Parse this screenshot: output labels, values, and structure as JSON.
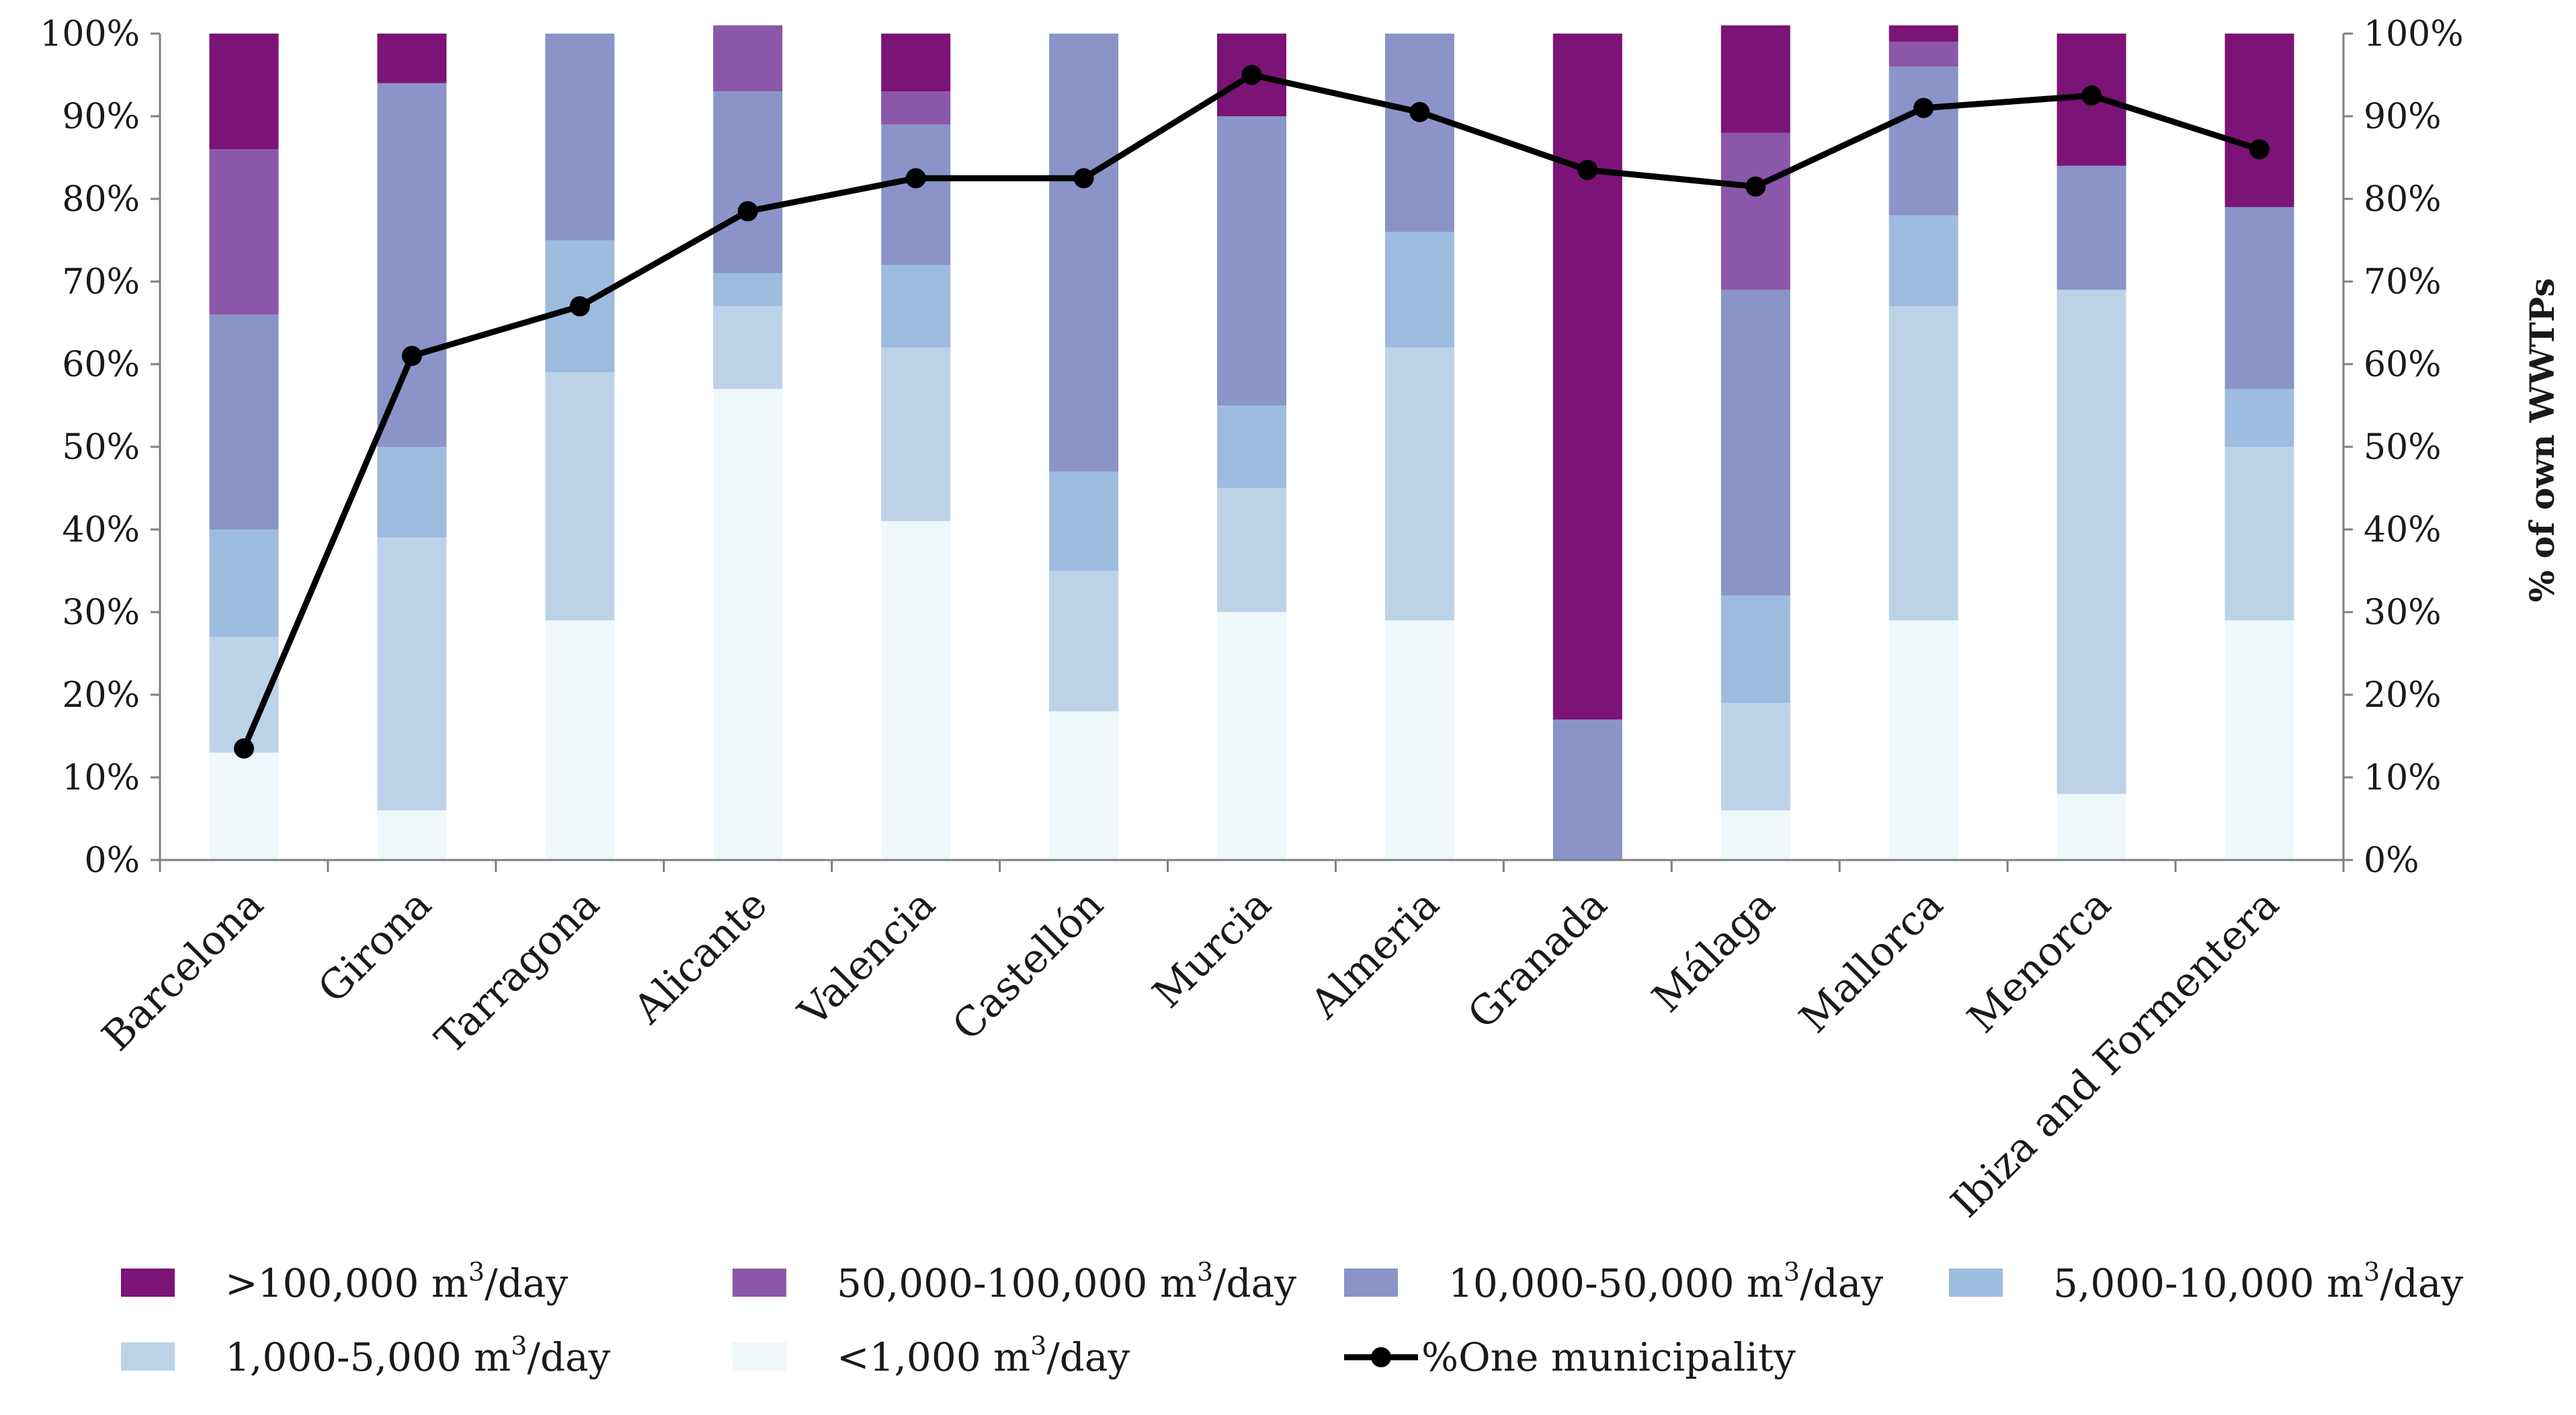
{
  "chart_data": {
    "type": "bar",
    "stacked": true,
    "categories": [
      "Barcelona",
      "Girona",
      "Tarragona",
      "Alicante",
      "Valencia",
      "Castellón",
      "Murcia",
      "Almeria",
      "Granada",
      "Málaga",
      "Mallorca",
      "Menorca",
      "Ibiza and Formentera"
    ],
    "series": [
      {
        "name": "<1,000",
        "unit": "m3/day",
        "color": "#eef8fb",
        "values": [
          13,
          6,
          29,
          57,
          41,
          18,
          30,
          29,
          0,
          6,
          29,
          8,
          29
        ]
      },
      {
        "name": "1,000-5,000",
        "unit": "m3/day",
        "color": "#bcd3e7",
        "values": [
          14,
          33,
          30,
          10,
          21,
          17,
          15,
          33,
          0,
          13,
          38,
          61,
          21
        ]
      },
      {
        "name": "5,000-10,000",
        "unit": "m3/day",
        "color": "#9ebce0",
        "values": [
          13,
          11,
          16,
          4,
          10,
          12,
          10,
          14,
          0,
          13,
          11,
          0,
          7
        ]
      },
      {
        "name": "10,000-50,000",
        "unit": "m3/day",
        "color": "#8a94c8",
        "values": [
          26,
          44,
          25,
          22,
          17,
          53,
          35,
          24,
          17,
          37,
          18,
          15,
          22
        ]
      },
      {
        "name": "50,000-100,000",
        "unit": "m3/day",
        "color": "#8b57a8",
        "values": [
          20,
          0,
          0,
          8,
          4,
          0,
          0,
          0,
          0,
          19,
          3,
          0,
          0
        ]
      },
      {
        "name": ">100,000",
        "unit": "m3/day",
        "color": "#7b1476",
        "values": [
          14,
          6,
          0,
          0,
          7,
          0,
          10,
          0,
          83,
          13,
          2,
          16,
          21
        ]
      }
    ],
    "line": {
      "name": "%One municipality",
      "color": "#000000",
      "values": [
        13.5,
        61,
        67,
        78.5,
        82.5,
        82.5,
        95,
        90.5,
        83.5,
        81.5,
        91,
        92.5,
        86
      ]
    },
    "ylim": [
      0,
      100
    ],
    "y_ticks": [
      "0%",
      "10%",
      "20%",
      "30%",
      "40%",
      "50%",
      "60%",
      "70%",
      "80%",
      "90%",
      "100%"
    ],
    "y2_ticks": [
      "0%",
      "10%",
      "20%",
      "30%",
      "40%",
      "50%",
      "60%",
      "70%",
      "80%",
      "90%",
      "100%"
    ],
    "y2label": "% of own WWTPs",
    "legend": {
      "placement": "bottom",
      "unit_base": "m",
      "unit_exp": "3",
      "unit_tail": "/day"
    }
  }
}
